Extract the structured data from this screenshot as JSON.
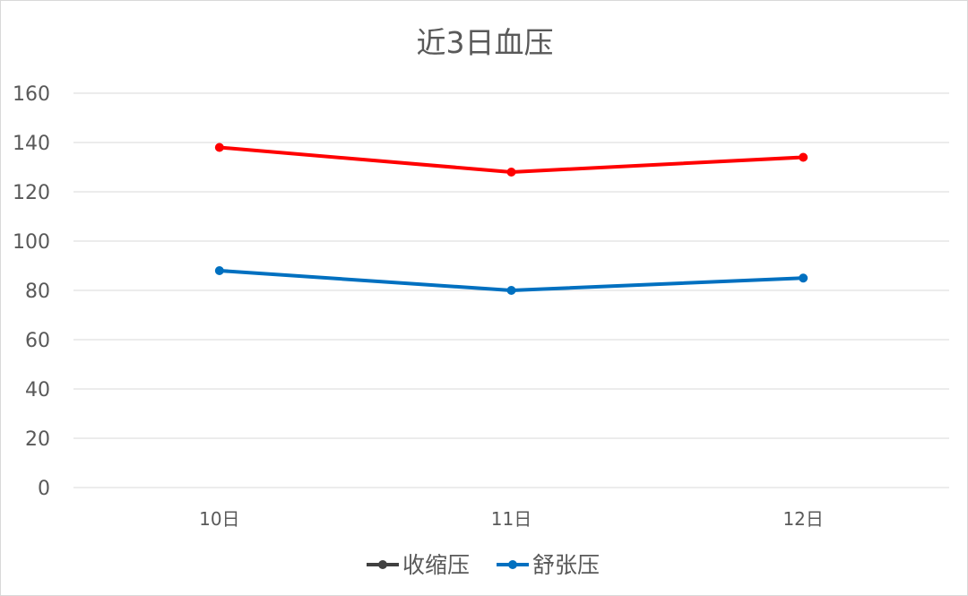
{
  "chart_data": {
    "type": "line",
    "title": "近3日血压",
    "categories": [
      "10日",
      "11日",
      "12日"
    ],
    "series": [
      {
        "name": "收缩压",
        "values": [
          138,
          128,
          134
        ],
        "color": "#ff0000",
        "legend_color": "#404040"
      },
      {
        "name": "舒张压",
        "values": [
          88,
          80,
          85
        ],
        "color": "#0070c0",
        "legend_color": "#0070c0"
      }
    ],
    "ylim": [
      0,
      160
    ],
    "yticks": [
      "0",
      "20",
      "40",
      "60",
      "80",
      "100",
      "120",
      "140",
      "160"
    ],
    "grid": true,
    "legend_position": "bottom"
  }
}
